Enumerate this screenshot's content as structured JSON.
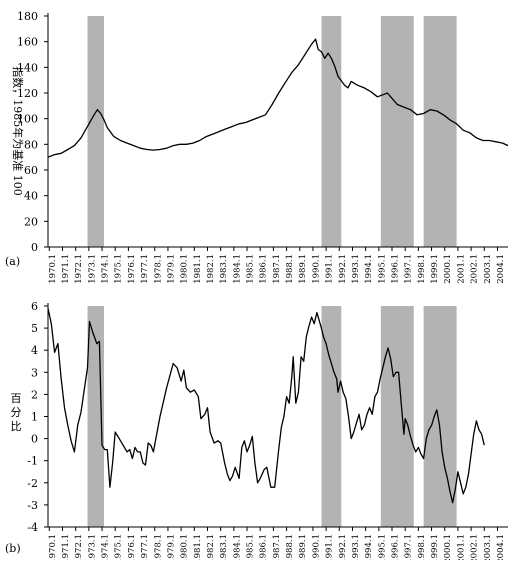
{
  "chart_data": [
    {
      "type": "line",
      "panel_label": "(a)",
      "ylabel": "指数，1985年为基准 100",
      "ylim": [
        0,
        180
      ],
      "yticks": [
        0,
        20,
        40,
        60,
        80,
        100,
        120,
        140,
        160,
        180
      ],
      "x_range": [
        1970.0,
        2004.9
      ],
      "xtick_labels": [
        "1970.1",
        "1971.1",
        "1972.1",
        "1973.1",
        "1974.1",
        "1975.1",
        "1976.1",
        "1977.1",
        "1978.1",
        "1979.1",
        "1980.1",
        "1981.1",
        "1982.1",
        "1983.1",
        "1984.1",
        "1985.1",
        "1986.1",
        "1987.1",
        "1988.1",
        "1989.1",
        "1990.1",
        "1991.1",
        "1992.1",
        "1993.1",
        "1994.1",
        "1995.1",
        "1996.1",
        "1997.1",
        "1998.1",
        "1999.1",
        "2000.1",
        "2001.1",
        "2002.1",
        "2003.1",
        "2004.1"
      ],
      "shaded_periods": [
        [
          1973.0,
          1974.25
        ],
        [
          1990.75,
          1992.25
        ],
        [
          1995.25,
          1997.75
        ],
        [
          1998.5,
          2001.0
        ]
      ],
      "points": [
        [
          1970.0,
          70
        ],
        [
          1970.5,
          72
        ],
        [
          1971.0,
          73
        ],
        [
          1971.5,
          76
        ],
        [
          1972.0,
          79
        ],
        [
          1972.5,
          85
        ],
        [
          1973.0,
          94
        ],
        [
          1973.5,
          103
        ],
        [
          1973.75,
          107
        ],
        [
          1974.0,
          104
        ],
        [
          1974.25,
          99
        ],
        [
          1974.5,
          93
        ],
        [
          1975.0,
          86
        ],
        [
          1975.5,
          83
        ],
        [
          1976.0,
          81
        ],
        [
          1976.5,
          79
        ],
        [
          1977.0,
          77
        ],
        [
          1977.5,
          76
        ],
        [
          1978.0,
          75.5
        ],
        [
          1978.5,
          76
        ],
        [
          1979.0,
          77
        ],
        [
          1979.5,
          79
        ],
        [
          1980.0,
          80
        ],
        [
          1980.5,
          80
        ],
        [
          1981.0,
          81
        ],
        [
          1981.5,
          83
        ],
        [
          1982.0,
          86
        ],
        [
          1982.5,
          88
        ],
        [
          1983.0,
          90
        ],
        [
          1983.5,
          92
        ],
        [
          1984.0,
          94
        ],
        [
          1984.5,
          96
        ],
        [
          1985.0,
          97
        ],
        [
          1985.5,
          99
        ],
        [
          1986.0,
          101
        ],
        [
          1986.5,
          103
        ],
        [
          1987.0,
          111
        ],
        [
          1987.5,
          120
        ],
        [
          1988.0,
          128
        ],
        [
          1988.5,
          136
        ],
        [
          1989.0,
          142
        ],
        [
          1989.5,
          150
        ],
        [
          1990.0,
          158
        ],
        [
          1990.3,
          162
        ],
        [
          1990.5,
          154
        ],
        [
          1990.75,
          152
        ],
        [
          1991.0,
          147
        ],
        [
          1991.25,
          151
        ],
        [
          1991.5,
          147
        ],
        [
          1991.75,
          141
        ],
        [
          1992.0,
          133
        ],
        [
          1992.5,
          126
        ],
        [
          1992.75,
          124
        ],
        [
          1993.0,
          129
        ],
        [
          1993.5,
          126
        ],
        [
          1994.0,
          124
        ],
        [
          1994.5,
          121
        ],
        [
          1995.0,
          117
        ],
        [
          1995.5,
          119
        ],
        [
          1995.75,
          120
        ],
        [
          1996.0,
          117
        ],
        [
          1996.5,
          111
        ],
        [
          1997.0,
          109
        ],
        [
          1997.5,
          107
        ],
        [
          1998.0,
          103
        ],
        [
          1998.5,
          104
        ],
        [
          1999.0,
          107
        ],
        [
          1999.5,
          106
        ],
        [
          2000.0,
          103
        ],
        [
          2000.5,
          99
        ],
        [
          2001.0,
          96
        ],
        [
          2001.5,
          91
        ],
        [
          2002.0,
          89
        ],
        [
          2002.5,
          85
        ],
        [
          2003.0,
          83
        ],
        [
          2003.5,
          83
        ],
        [
          2004.0,
          82
        ],
        [
          2004.5,
          81
        ],
        [
          2004.9,
          79
        ]
      ]
    },
    {
      "type": "line",
      "panel_label": "(b)",
      "ylabel": "百分比",
      "ylim": [
        -4,
        6
      ],
      "yticks": [
        -4,
        -3,
        -2,
        -1,
        0,
        1,
        2,
        3,
        4,
        5,
        6
      ],
      "x_range": [
        1970.0,
        2004.9
      ],
      "xtick_labels": [
        "1970.1",
        "1971.1",
        "1972.1",
        "1973.1",
        "1974.1",
        "1975.1",
        "1976.1",
        "1977.1",
        "1978.1",
        "1979.1",
        "1980.1",
        "1981.1",
        "1982.1",
        "1983.1",
        "1984.1",
        "1985.1",
        "1986.1",
        "1987.1",
        "1988.1",
        "1989.1",
        "1990.1",
        "1991.1",
        "1992.1",
        "1993.1",
        "1994.1",
        "1995.1",
        "1996.1",
        "1997.1",
        "1998.1",
        "1999.1",
        "2000.1",
        "2001.1",
        "2002.1",
        "2003.1",
        "2004.1"
      ],
      "shaded_periods": [
        [
          1973.0,
          1974.25
        ],
        [
          1990.75,
          1992.25
        ],
        [
          1995.25,
          1997.75
        ],
        [
          1998.5,
          2001.0
        ]
      ],
      "points": [
        [
          1970.0,
          5.9
        ],
        [
          1970.25,
          5.2
        ],
        [
          1970.5,
          3.9
        ],
        [
          1970.75,
          4.3
        ],
        [
          1971.0,
          2.7
        ],
        [
          1971.25,
          1.4
        ],
        [
          1971.5,
          0.6
        ],
        [
          1971.75,
          -0.1
        ],
        [
          1972.0,
          -0.6
        ],
        [
          1972.25,
          0.6
        ],
        [
          1972.5,
          1.2
        ],
        [
          1972.75,
          2.2
        ],
        [
          1973.0,
          3.2
        ],
        [
          1973.15,
          5.3
        ],
        [
          1973.4,
          4.8
        ],
        [
          1973.7,
          4.3
        ],
        [
          1973.9,
          4.4
        ],
        [
          1974.1,
          -0.3
        ],
        [
          1974.3,
          -0.5
        ],
        [
          1974.5,
          -0.5
        ],
        [
          1974.7,
          -2.2
        ],
        [
          1974.9,
          -1.1
        ],
        [
          1975.1,
          0.3
        ],
        [
          1975.4,
          0.0
        ],
        [
          1975.7,
          -0.3
        ],
        [
          1976.0,
          -0.6
        ],
        [
          1976.2,
          -0.5
        ],
        [
          1976.4,
          -0.9
        ],
        [
          1976.6,
          -0.4
        ],
        [
          1976.8,
          -0.6
        ],
        [
          1977.0,
          -0.6
        ],
        [
          1977.2,
          -1.1
        ],
        [
          1977.4,
          -1.2
        ],
        [
          1977.6,
          -0.2
        ],
        [
          1977.8,
          -0.3
        ],
        [
          1978.0,
          -0.6
        ],
        [
          1978.5,
          1.0
        ],
        [
          1979.0,
          2.3
        ],
        [
          1979.5,
          3.4
        ],
        [
          1979.8,
          3.2
        ],
        [
          1980.1,
          2.6
        ],
        [
          1980.3,
          3.1
        ],
        [
          1980.5,
          2.3
        ],
        [
          1980.8,
          2.1
        ],
        [
          1981.1,
          2.2
        ],
        [
          1981.4,
          1.9
        ],
        [
          1981.6,
          0.9
        ],
        [
          1981.9,
          1.1
        ],
        [
          1982.1,
          1.4
        ],
        [
          1982.3,
          0.3
        ],
        [
          1982.6,
          -0.2
        ],
        [
          1982.9,
          -0.1
        ],
        [
          1983.1,
          -0.2
        ],
        [
          1983.4,
          -1.1
        ],
        [
          1983.6,
          -1.6
        ],
        [
          1983.8,
          -1.9
        ],
        [
          1984.0,
          -1.7
        ],
        [
          1984.2,
          -1.3
        ],
        [
          1984.5,
          -1.8
        ],
        [
          1984.7,
          -0.4
        ],
        [
          1984.9,
          -0.1
        ],
        [
          1985.1,
          -0.6
        ],
        [
          1985.3,
          -0.3
        ],
        [
          1985.5,
          0.1
        ],
        [
          1985.7,
          -1.1
        ],
        [
          1985.9,
          -2.0
        ],
        [
          1986.1,
          -1.8
        ],
        [
          1986.4,
          -1.4
        ],
        [
          1986.6,
          -1.3
        ],
        [
          1986.9,
          -2.2
        ],
        [
          1987.2,
          -2.2
        ],
        [
          1987.5,
          -0.5
        ],
        [
          1987.7,
          0.5
        ],
        [
          1987.9,
          1.0
        ],
        [
          1988.1,
          1.9
        ],
        [
          1988.3,
          1.6
        ],
        [
          1988.5,
          2.8
        ],
        [
          1988.6,
          3.7
        ],
        [
          1988.8,
          1.6
        ],
        [
          1989.0,
          2.1
        ],
        [
          1989.2,
          3.7
        ],
        [
          1989.4,
          3.5
        ],
        [
          1989.6,
          4.6
        ],
        [
          1989.8,
          5.1
        ],
        [
          1990.0,
          5.5
        ],
        [
          1990.2,
          5.2
        ],
        [
          1990.4,
          5.7
        ],
        [
          1990.5,
          5.5
        ],
        [
          1990.7,
          5.1
        ],
        [
          1990.9,
          4.6
        ],
        [
          1991.1,
          4.3
        ],
        [
          1991.3,
          3.8
        ],
        [
          1991.5,
          3.4
        ],
        [
          1991.7,
          3.0
        ],
        [
          1991.9,
          2.7
        ],
        [
          1992.0,
          2.1
        ],
        [
          1992.2,
          2.6
        ],
        [
          1992.4,
          2.1
        ],
        [
          1992.6,
          1.8
        ],
        [
          1992.8,
          1.0
        ],
        [
          1993.0,
          0.0
        ],
        [
          1993.2,
          0.3
        ],
        [
          1993.4,
          0.7
        ],
        [
          1993.6,
          1.1
        ],
        [
          1993.8,
          0.4
        ],
        [
          1994.0,
          0.6
        ],
        [
          1994.2,
          1.1
        ],
        [
          1994.4,
          1.4
        ],
        [
          1994.6,
          1.1
        ],
        [
          1994.8,
          1.9
        ],
        [
          1995.0,
          2.1
        ],
        [
          1995.2,
          2.7
        ],
        [
          1995.4,
          3.2
        ],
        [
          1995.6,
          3.7
        ],
        [
          1995.8,
          4.1
        ],
        [
          1996.0,
          3.6
        ],
        [
          1996.2,
          2.8
        ],
        [
          1996.4,
          3.0
        ],
        [
          1996.6,
          3.0
        ],
        [
          1996.8,
          1.6
        ],
        [
          1997.0,
          0.2
        ],
        [
          1997.1,
          0.9
        ],
        [
          1997.3,
          0.6
        ],
        [
          1997.5,
          0.1
        ],
        [
          1997.7,
          -0.3
        ],
        [
          1997.9,
          -0.6
        ],
        [
          1998.1,
          -0.4
        ],
        [
          1998.3,
          -0.7
        ],
        [
          1998.5,
          -0.9
        ],
        [
          1998.7,
          0.0
        ],
        [
          1998.9,
          0.4
        ],
        [
          1999.1,
          0.6
        ],
        [
          1999.3,
          1.0
        ],
        [
          1999.5,
          1.3
        ],
        [
          1999.7,
          0.6
        ],
        [
          1999.9,
          -0.6
        ],
        [
          2000.1,
          -1.3
        ],
        [
          2000.3,
          -1.8
        ],
        [
          2000.5,
          -2.4
        ],
        [
          2000.7,
          -2.9
        ],
        [
          2000.9,
          -2.3
        ],
        [
          2001.1,
          -1.5
        ],
        [
          2001.3,
          -2.0
        ],
        [
          2001.5,
          -2.5
        ],
        [
          2001.7,
          -2.2
        ],
        [
          2001.9,
          -1.6
        ],
        [
          2002.1,
          -0.7
        ],
        [
          2002.3,
          0.2
        ],
        [
          2002.5,
          0.8
        ],
        [
          2002.7,
          0.4
        ],
        [
          2002.9,
          0.2
        ],
        [
          2003.1,
          -0.3
        ]
      ]
    }
  ]
}
